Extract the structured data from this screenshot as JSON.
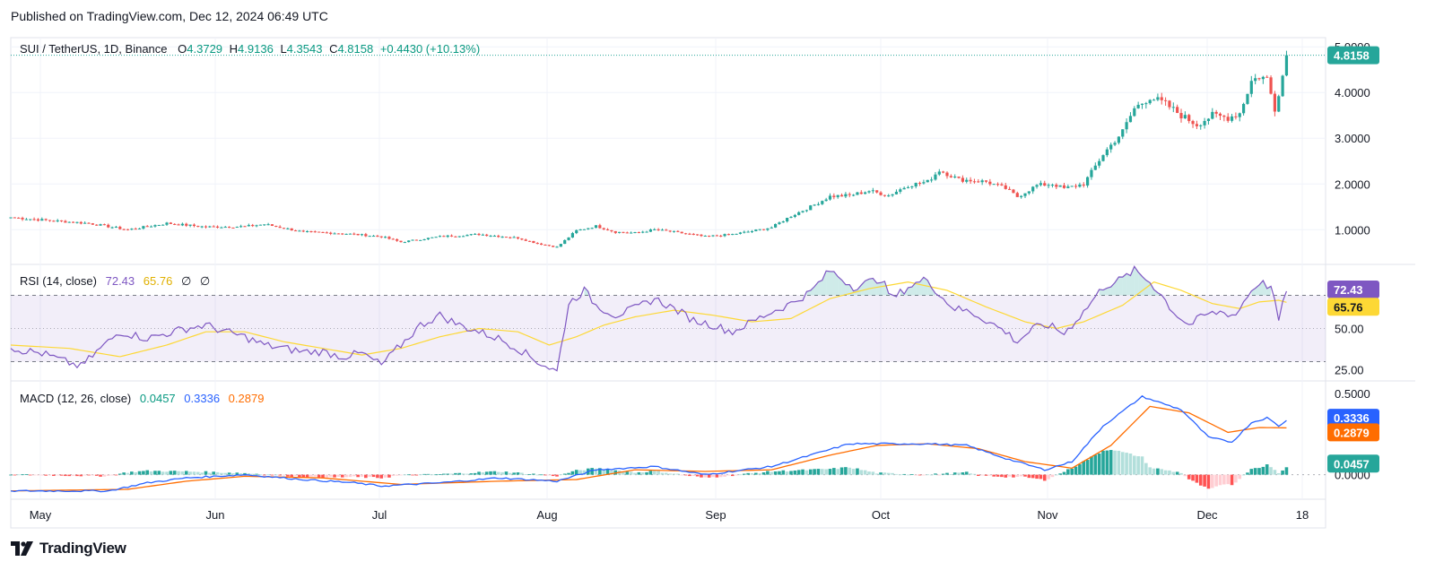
{
  "header": {
    "published": "Published on TradingView.com, Dec 12, 2024 06:49 UTC"
  },
  "brand": {
    "name": "TradingView",
    "logo_icon": "tradingview-logo-icon"
  },
  "colors": {
    "up": "#26a69a",
    "down": "#ef5350",
    "rsi": "#7e57c2",
    "rsi_ma": "#fdd835",
    "macd": "#2962ff",
    "signal": "#ff6d00",
    "grid": "#f0f3fa"
  },
  "chart_data": [
    {
      "type": "candlestick",
      "title": "SUI / TetherUS, 1D, Binance",
      "ohlc_legend": {
        "o_label": "O",
        "o": "4.3729",
        "h_label": "H",
        "h": "4.9136",
        "l_label": "L",
        "l": "4.3543",
        "c_label": "C",
        "c": "4.8158",
        "change": "+0.4430 (+10.13%)"
      },
      "last_price": "4.8158",
      "y_ticks": [
        "5.0000",
        "4.0000",
        "3.0000",
        "2.0000",
        "1.0000"
      ],
      "x_ticks": [
        "May",
        "Jun",
        "Jul",
        "Aug",
        "Sep",
        "Oct",
        "Nov",
        "Dec",
        "18"
      ],
      "ylim": [
        0.3,
        5.2
      ],
      "anchors_close": [
        [
          0,
          1.27
        ],
        [
          10,
          1.2
        ],
        [
          20,
          1.14
        ],
        [
          30,
          1.0
        ],
        [
          40,
          1.14
        ],
        [
          50,
          1.06
        ],
        [
          60,
          1.07
        ],
        [
          65,
          1.12
        ],
        [
          75,
          0.95
        ],
        [
          85,
          0.92
        ],
        [
          95,
          0.85
        ],
        [
          100,
          0.73
        ],
        [
          110,
          0.85
        ],
        [
          120,
          0.9
        ],
        [
          130,
          0.82
        ],
        [
          135,
          0.7
        ],
        [
          140,
          0.62
        ],
        [
          145,
          0.98
        ],
        [
          150,
          1.08
        ],
        [
          155,
          0.95
        ],
        [
          160,
          0.93
        ],
        [
          165,
          1.0
        ],
        [
          170,
          0.95
        ],
        [
          178,
          0.85
        ],
        [
          185,
          0.9
        ],
        [
          190,
          0.97
        ],
        [
          195,
          1.05
        ],
        [
          200,
          1.3
        ],
        [
          205,
          1.5
        ],
        [
          210,
          1.73
        ],
        [
          215,
          1.75
        ],
        [
          220,
          1.85
        ],
        [
          225,
          1.75
        ],
        [
          230,
          1.97
        ],
        [
          235,
          2.05
        ],
        [
          238,
          2.3
        ],
        [
          243,
          2.1
        ],
        [
          250,
          2.05
        ],
        [
          255,
          1.9
        ],
        [
          258,
          1.72
        ],
        [
          263,
          1.97
        ],
        [
          267,
          2.0
        ],
        [
          270,
          1.9
        ],
        [
          275,
          2.0
        ],
        [
          280,
          2.65
        ],
        [
          285,
          3.15
        ],
        [
          288,
          3.65
        ],
        [
          292,
          3.9
        ],
        [
          296,
          3.75
        ],
        [
          300,
          3.5
        ],
        [
          304,
          3.3
        ],
        [
          308,
          3.5
        ],
        [
          312,
          3.45
        ],
        [
          315,
          3.55
        ],
        [
          318,
          4.25
        ],
        [
          320,
          4.35
        ],
        [
          322,
          4.3
        ],
        [
          324,
          3.65
        ],
        [
          326,
          4.37
        ],
        [
          327,
          4.8158
        ]
      ]
    },
    {
      "type": "line",
      "title": "RSI (14, close)",
      "values_legend": [
        "72.43",
        "65.76",
        "∅",
        "∅"
      ],
      "series": [
        {
          "name": "RSI",
          "last": 72.43
        },
        {
          "name": "RSI-based MA",
          "last": 65.76
        }
      ],
      "y_ticks": [
        "50.00",
        "25.00"
      ],
      "levels": [
        70,
        50,
        30
      ],
      "ylim": [
        20,
        87
      ],
      "rsi_anchors": [
        [
          0,
          38
        ],
        [
          8,
          35
        ],
        [
          14,
          30
        ],
        [
          18,
          27
        ],
        [
          23,
          38
        ],
        [
          28,
          48
        ],
        [
          35,
          44
        ],
        [
          45,
          50
        ],
        [
          50,
          52
        ],
        [
          55,
          48
        ],
        [
          60,
          45
        ],
        [
          65,
          40
        ],
        [
          70,
          38
        ],
        [
          75,
          36
        ],
        [
          80,
          36
        ],
        [
          85,
          33
        ],
        [
          90,
          35
        ],
        [
          95,
          28
        ],
        [
          100,
          40
        ],
        [
          105,
          52
        ],
        [
          110,
          58
        ],
        [
          115,
          52
        ],
        [
          120,
          48
        ],
        [
          125,
          44
        ],
        [
          130,
          38
        ],
        [
          135,
          30
        ],
        [
          140,
          24
        ],
        [
          143,
          65
        ],
        [
          147,
          73
        ],
        [
          150,
          64
        ],
        [
          155,
          58
        ],
        [
          160,
          62
        ],
        [
          165,
          68
        ],
        [
          170,
          62
        ],
        [
          175,
          55
        ],
        [
          180,
          52
        ],
        [
          185,
          48
        ],
        [
          190,
          54
        ],
        [
          195,
          60
        ],
        [
          200,
          65
        ],
        [
          205,
          72
        ],
        [
          210,
          85
        ],
        [
          213,
          80
        ],
        [
          216,
          75
        ],
        [
          220,
          78
        ],
        [
          223,
          80
        ],
        [
          226,
          68
        ],
        [
          230,
          75
        ],
        [
          235,
          80
        ],
        [
          238,
          70
        ],
        [
          242,
          62
        ],
        [
          246,
          60
        ],
        [
          250,
          55
        ],
        [
          255,
          48
        ],
        [
          258,
          42
        ],
        [
          262,
          50
        ],
        [
          266,
          52
        ],
        [
          270,
          47
        ],
        [
          275,
          60
        ],
        [
          280,
          75
        ],
        [
          285,
          80
        ],
        [
          288,
          85
        ],
        [
          292,
          78
        ],
        [
          295,
          70
        ],
        [
          298,
          60
        ],
        [
          302,
          52
        ],
        [
          306,
          58
        ],
        [
          310,
          60
        ],
        [
          314,
          58
        ],
        [
          317,
          70
        ],
        [
          320,
          78
        ],
        [
          323,
          75
        ],
        [
          325,
          55
        ],
        [
          327,
          72.43
        ]
      ],
      "ma_anchors": [
        [
          0,
          40
        ],
        [
          15,
          38
        ],
        [
          28,
          33
        ],
        [
          40,
          40
        ],
        [
          50,
          48
        ],
        [
          60,
          48
        ],
        [
          70,
          42
        ],
        [
          80,
          38
        ],
        [
          90,
          34
        ],
        [
          100,
          38
        ],
        [
          110,
          45
        ],
        [
          120,
          50
        ],
        [
          130,
          48
        ],
        [
          138,
          40
        ],
        [
          145,
          45
        ],
        [
          152,
          52
        ],
        [
          160,
          57
        ],
        [
          170,
          61
        ],
        [
          180,
          58
        ],
        [
          190,
          54
        ],
        [
          200,
          56
        ],
        [
          210,
          68
        ],
        [
          220,
          74
        ],
        [
          230,
          78
        ],
        [
          240,
          73
        ],
        [
          250,
          63
        ],
        [
          260,
          54
        ],
        [
          268,
          50
        ],
        [
          275,
          54
        ],
        [
          285,
          64
        ],
        [
          293,
          78
        ],
        [
          300,
          73
        ],
        [
          308,
          65
        ],
        [
          315,
          62
        ],
        [
          320,
          66
        ],
        [
          325,
          67
        ],
        [
          327,
          65.76
        ]
      ]
    },
    {
      "type": "line",
      "title": "MACD (12, 26, close)",
      "values_legend": [
        "0.0457",
        "0.3336",
        "0.2879"
      ],
      "series": [
        {
          "name": "Histogram",
          "last": 0.0457
        },
        {
          "name": "MACD",
          "last": 0.3336
        },
        {
          "name": "Signal",
          "last": 0.2879
        }
      ],
      "y_ticks": [
        "0.5000",
        "0.0000"
      ],
      "ylim": [
        -0.14,
        0.56
      ],
      "macd_anchors": [
        [
          0,
          -0.1
        ],
        [
          25,
          -0.1
        ],
        [
          35,
          -0.05
        ],
        [
          45,
          -0.02
        ],
        [
          60,
          0.0
        ],
        [
          75,
          -0.03
        ],
        [
          88,
          -0.05
        ],
        [
          95,
          -0.07
        ],
        [
          110,
          -0.05
        ],
        [
          125,
          -0.02
        ],
        [
          140,
          -0.04
        ],
        [
          150,
          0.03
        ],
        [
          165,
          0.05
        ],
        [
          178,
          0.0
        ],
        [
          195,
          0.05
        ],
        [
          205,
          0.12
        ],
        [
          215,
          0.19
        ],
        [
          225,
          0.19
        ],
        [
          235,
          0.19
        ],
        [
          245,
          0.18
        ],
        [
          255,
          0.1
        ],
        [
          265,
          0.03
        ],
        [
          272,
          0.08
        ],
        [
          280,
          0.3
        ],
        [
          290,
          0.48
        ],
        [
          300,
          0.4
        ],
        [
          307,
          0.23
        ],
        [
          313,
          0.2
        ],
        [
          318,
          0.32
        ],
        [
          322,
          0.35
        ],
        [
          325,
          0.3
        ],
        [
          327,
          0.3336
        ]
      ],
      "signal_anchors": [
        [
          0,
          -0.1
        ],
        [
          30,
          -0.09
        ],
        [
          45,
          -0.04
        ],
        [
          60,
          -0.01
        ],
        [
          80,
          -0.02
        ],
        [
          100,
          -0.06
        ],
        [
          125,
          -0.04
        ],
        [
          145,
          -0.03
        ],
        [
          160,
          0.03
        ],
        [
          178,
          0.02
        ],
        [
          195,
          0.03
        ],
        [
          210,
          0.12
        ],
        [
          222,
          0.18
        ],
        [
          235,
          0.19
        ],
        [
          248,
          0.16
        ],
        [
          260,
          0.08
        ],
        [
          272,
          0.04
        ],
        [
          282,
          0.18
        ],
        [
          292,
          0.42
        ],
        [
          302,
          0.38
        ],
        [
          312,
          0.26
        ],
        [
          320,
          0.29
        ],
        [
          327,
          0.2879
        ]
      ]
    }
  ]
}
